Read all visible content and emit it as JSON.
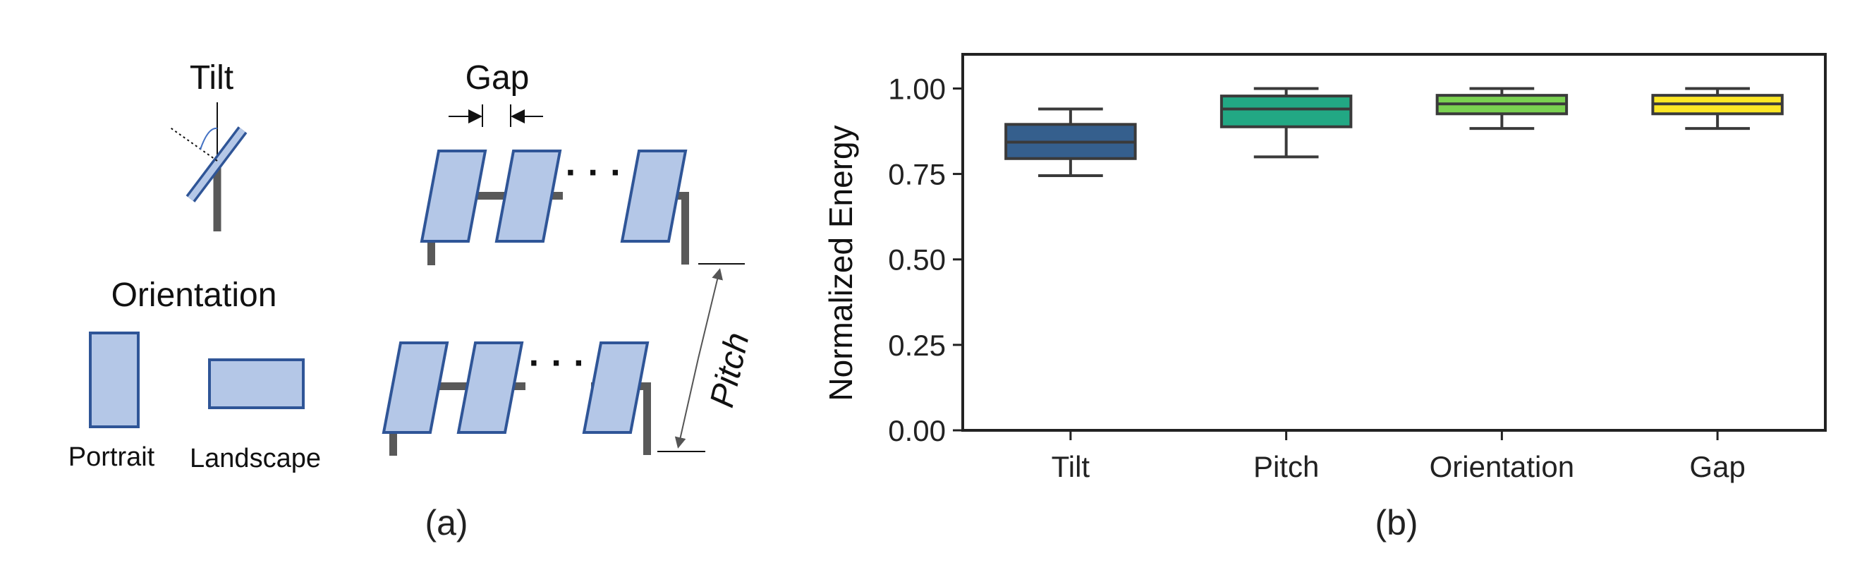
{
  "diagram": {
    "labels": {
      "tilt": "Tilt",
      "gap": "Gap",
      "orientation": "Orientation",
      "portrait": "Portrait",
      "landscape": "Landscape",
      "pitch": "Pitch",
      "ellipsis": "· · ·"
    },
    "colors": {
      "panel_fill": "#b4c7e7",
      "panel_stroke": "#2f5597",
      "post": "#595959"
    },
    "caption": "(a)"
  },
  "chart_data": {
    "type": "box",
    "categories": [
      "Tilt",
      "Pitch",
      "Orientation",
      "Gap"
    ],
    "boxes": [
      {
        "category": "Tilt",
        "whisker_low": 0.745,
        "q1": 0.795,
        "median": 0.843,
        "q3": 0.895,
        "whisker_high": 0.94,
        "color": "#355f8d"
      },
      {
        "category": "Pitch",
        "whisker_low": 0.8,
        "q1": 0.888,
        "median": 0.94,
        "q3": 0.978,
        "whisker_high": 1.0,
        "color": "#22a884"
      },
      {
        "category": "Orientation",
        "whisker_low": 0.883,
        "q1": 0.926,
        "median": 0.955,
        "q3": 0.98,
        "whisker_high": 1.0,
        "color": "#7ad151"
      },
      {
        "category": "Gap",
        "whisker_low": 0.883,
        "q1": 0.926,
        "median": 0.955,
        "q3": 0.98,
        "whisker_high": 1.0,
        "color": "#fde725"
      }
    ],
    "ylabel": "Normalized Energy",
    "ylim": [
      0.0,
      1.1
    ],
    "yticks": [
      "0.00",
      "0.25",
      "0.50",
      "0.75",
      "1.00"
    ],
    "grid": false,
    "caption": "(b)"
  }
}
